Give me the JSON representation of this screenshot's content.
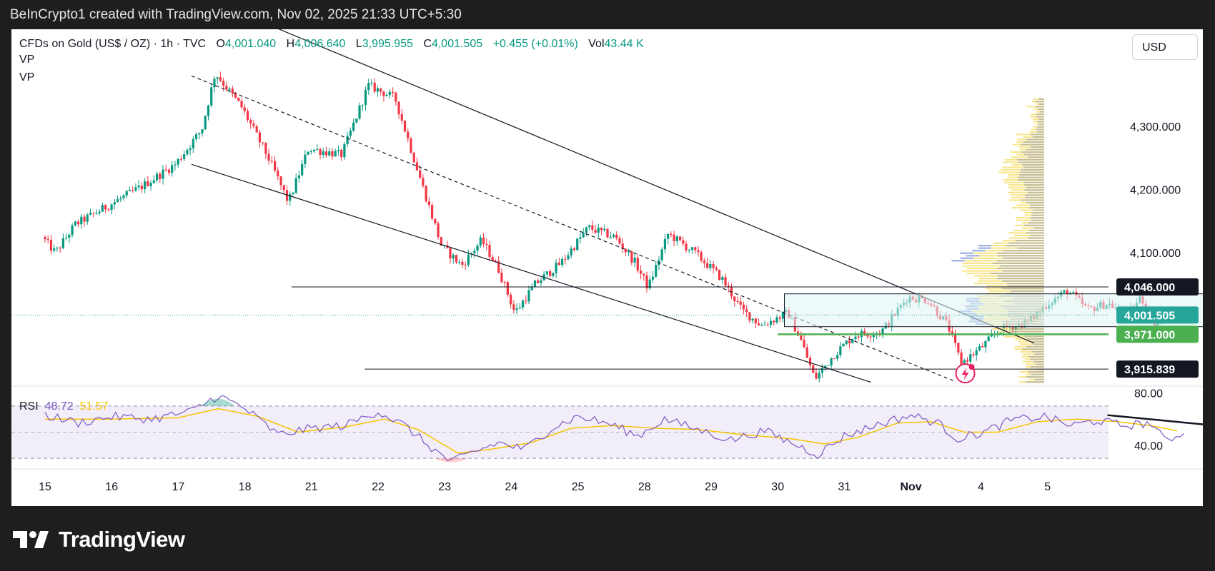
{
  "header": {
    "text": "BeInCrypto1 created with TradingView.com, Nov 02, 2025 21:33 UTC+5:30"
  },
  "legend": {
    "symbol": "CFDs on Gold (US$ / OZ) · 1h · TVC",
    "o_label": "O",
    "o_value": "4,001.040",
    "h_label": "H",
    "h_value": "4,006.640",
    "l_label": "L",
    "l_value": "3,995.955",
    "c_label": "C",
    "c_value": "4,001.505",
    "change": "+0.455 (+0.01%)",
    "vol_label": "Vol",
    "vol_value": "43.44 K",
    "indicators": [
      "VP",
      "VP"
    ]
  },
  "currency_button": "USD",
  "rsi_legend": {
    "label": "RSI",
    "value1": "48.72",
    "value2": "51.57"
  },
  "footer": {
    "brand": "TradingView"
  },
  "colors": {
    "up": "#089981",
    "down": "#f23645",
    "rsi": "#7e57c2",
    "rsi_ma": "#f5c400",
    "support": "#4caf50",
    "current": "#26a69a",
    "vp": "#f7e27a",
    "vp_blue": "#8fa6e0"
  },
  "chart_data": [
    {
      "type": "candlestick",
      "title": "CFDs on Gold (US$ / OZ) · 1h · TVC",
      "x_ticks": [
        "15",
        "16",
        "17",
        "18",
        "21",
        "22",
        "23",
        "24",
        "25",
        "28",
        "29",
        "30",
        "31",
        "Nov",
        "4",
        "5"
      ],
      "y_ticks": [
        "4,300.000",
        "4,200.000",
        "4,100.000"
      ],
      "ylim": [
        3890,
        4420
      ],
      "price_labels": [
        {
          "label": "4,046.000",
          "value": 4046,
          "style": "dark"
        },
        {
          "label": "4,001.505",
          "value": 4001.505,
          "style": "current"
        },
        {
          "label": "3,971.000",
          "value": 3971,
          "style": "support"
        },
        {
          "label": "3,915.839",
          "value": 3915.839,
          "style": "dark"
        }
      ],
      "swing_points": [
        {
          "x": 0.0,
          "y": 4125
        },
        {
          "x": 0.2,
          "y": 4100
        },
        {
          "x": 0.5,
          "y": 4145
        },
        {
          "x": 1.0,
          "y": 4175
        },
        {
          "x": 1.5,
          "y": 4205
        },
        {
          "x": 2.0,
          "y": 4240
        },
        {
          "x": 2.4,
          "y": 4295
        },
        {
          "x": 2.6,
          "y": 4385
        },
        {
          "x": 3.0,
          "y": 4330
        },
        {
          "x": 3.4,
          "y": 4250
        },
        {
          "x": 3.7,
          "y": 4180
        },
        {
          "x": 4.0,
          "y": 4265
        },
        {
          "x": 4.5,
          "y": 4255
        },
        {
          "x": 4.9,
          "y": 4365
        },
        {
          "x": 5.3,
          "y": 4345
        },
        {
          "x": 5.7,
          "y": 4210
        },
        {
          "x": 6.0,
          "y": 4110
        },
        {
          "x": 6.3,
          "y": 4080
        },
        {
          "x": 6.6,
          "y": 4120
        },
        {
          "x": 6.85,
          "y": 4075
        },
        {
          "x": 7.1,
          "y": 4005
        },
        {
          "x": 7.4,
          "y": 4050
        },
        {
          "x": 7.8,
          "y": 4085
        },
        {
          "x": 8.2,
          "y": 4140
        },
        {
          "x": 8.6,
          "y": 4125
        },
        {
          "x": 8.9,
          "y": 4085
        },
        {
          "x": 9.1,
          "y": 4045
        },
        {
          "x": 9.4,
          "y": 4130
        },
        {
          "x": 9.8,
          "y": 4100
        },
        {
          "x": 10.2,
          "y": 4060
        },
        {
          "x": 10.5,
          "y": 4010
        },
        {
          "x": 10.8,
          "y": 3985
        },
        {
          "x": 11.2,
          "y": 4005
        },
        {
          "x": 11.4,
          "y": 3960
        },
        {
          "x": 11.6,
          "y": 3900
        },
        {
          "x": 11.9,
          "y": 3940
        },
        {
          "x": 12.2,
          "y": 3970
        },
        {
          "x": 12.6,
          "y": 3975
        },
        {
          "x": 13.0,
          "y": 4030
        },
        {
          "x": 13.3,
          "y": 4025
        },
        {
          "x": 13.6,
          "y": 3985
        },
        {
          "x": 13.8,
          "y": 3925
        },
        {
          "x": 14.1,
          "y": 3950
        },
        {
          "x": 14.4,
          "y": 3980
        },
        {
          "x": 14.8,
          "y": 3990
        },
        {
          "x": 15.1,
          "y": 4020
        },
        {
          "x": 15.4,
          "y": 4040
        },
        {
          "x": 15.7,
          "y": 4010
        },
        {
          "x": 16.0,
          "y": 4020
        },
        {
          "x": 16.3,
          "y": 4000
        },
        {
          "x": 16.5,
          "y": 4030
        },
        {
          "x": 16.7,
          "y": 3985
        },
        {
          "x": 16.9,
          "y": 4003
        }
      ],
      "horizontal_lines": [
        4046,
        3971,
        3915.839
      ],
      "range_box": {
        "x_start": 11.1,
        "x_end": 17.65,
        "top": 4035,
        "bottom": 3983
      },
      "channel_lines": [
        {
          "from": {
            "x": 3.15,
            "y": 4470
          },
          "to": {
            "x": 14.85,
            "y": 3957
          },
          "style": "solid"
        },
        {
          "from": {
            "x": 2.2,
            "y": 4380
          },
          "to": {
            "x": 13.65,
            "y": 3897
          },
          "style": "dashed"
        },
        {
          "from": {
            "x": 2.2,
            "y": 4240
          },
          "to": {
            "x": 12.4,
            "y": 3895
          },
          "style": "solid"
        }
      ]
    },
    {
      "type": "line",
      "title": "RSI",
      "series": [
        {
          "name": "RSI",
          "points": [
            [
              0,
              63
            ],
            [
              0.5,
              57
            ],
            [
              1.0,
              62
            ],
            [
              1.6,
              60
            ],
            [
              2.2,
              66
            ],
            [
              2.6,
              78
            ],
            [
              3.0,
              68
            ],
            [
              3.5,
              48
            ],
            [
              4.0,
              53
            ],
            [
              4.5,
              55
            ],
            [
              5.0,
              66
            ],
            [
              5.4,
              55
            ],
            [
              5.8,
              38
            ],
            [
              6.1,
              27
            ],
            [
              6.4,
              34
            ],
            [
              6.8,
              42
            ],
            [
              7.2,
              37
            ],
            [
              7.6,
              53
            ],
            [
              8.0,
              62
            ],
            [
              8.5,
              56
            ],
            [
              8.9,
              47
            ],
            [
              9.3,
              60
            ],
            [
              9.8,
              52
            ],
            [
              10.3,
              44
            ],
            [
              10.8,
              51
            ],
            [
              11.2,
              42
            ],
            [
              11.6,
              33
            ],
            [
              12.0,
              47
            ],
            [
              12.5,
              56
            ],
            [
              13.0,
              63
            ],
            [
              13.4,
              57
            ],
            [
              13.7,
              45
            ],
            [
              14.1,
              50
            ],
            [
              14.5,
              59
            ],
            [
              15.0,
              62
            ],
            [
              15.4,
              55
            ],
            [
              15.8,
              59
            ],
            [
              16.2,
              55
            ],
            [
              16.6,
              57
            ],
            [
              16.8,
              44
            ],
            [
              17.1,
              49
            ]
          ]
        },
        {
          "name": "MA",
          "points": [
            [
              0,
              60
            ],
            [
              1.0,
              60
            ],
            [
              2.0,
              61
            ],
            [
              2.6,
              68
            ],
            [
              3.2,
              62
            ],
            [
              3.8,
              50
            ],
            [
              4.5,
              54
            ],
            [
              5.1,
              60
            ],
            [
              5.6,
              52
            ],
            [
              6.2,
              34
            ],
            [
              6.7,
              37
            ],
            [
              7.3,
              42
            ],
            [
              7.9,
              53
            ],
            [
              8.5,
              55
            ],
            [
              9.2,
              53
            ],
            [
              9.8,
              52
            ],
            [
              10.5,
              48
            ],
            [
              11.2,
              45
            ],
            [
              11.7,
              41
            ],
            [
              12.2,
              46
            ],
            [
              12.8,
              57
            ],
            [
              13.3,
              58
            ],
            [
              13.8,
              50
            ],
            [
              14.3,
              50
            ],
            [
              14.9,
              58
            ],
            [
              15.5,
              60
            ],
            [
              16.1,
              58
            ],
            [
              16.6,
              55
            ],
            [
              17.0,
              51
            ]
          ]
        }
      ],
      "y_ticks": [
        "80.00",
        "40.00"
      ],
      "ylim": [
        23,
        83
      ],
      "bands": [
        70,
        50,
        30
      ],
      "trend_arrow": {
        "from": {
          "x": 15.95,
          "y": 63
        },
        "to": {
          "x": 18.6,
          "y": 50
        }
      }
    }
  ]
}
